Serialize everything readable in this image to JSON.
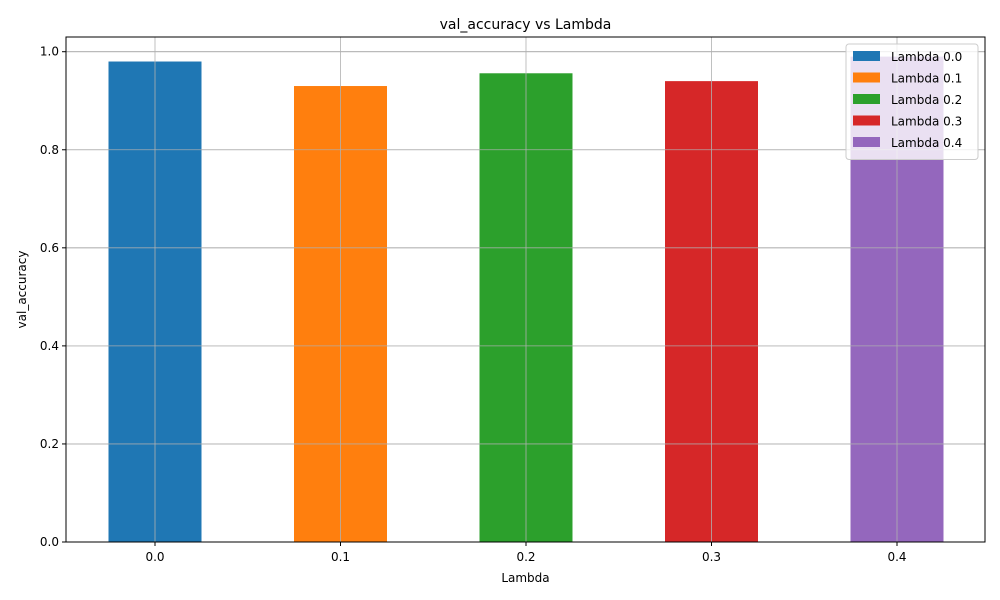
{
  "chart_data": {
    "type": "bar",
    "title": "val_accuracy vs Lambda",
    "xlabel": "Lambda",
    "ylabel": "val_accuracy",
    "categories": [
      "0.0",
      "0.1",
      "0.2",
      "0.3",
      "0.4"
    ],
    "ylim": [
      0,
      1.03
    ],
    "yticks": [
      "0.0",
      "0.2",
      "0.4",
      "0.6",
      "0.8",
      "1.0"
    ],
    "ytick_values": [
      0,
      0.2,
      0.4,
      0.6,
      0.8,
      1.0
    ],
    "grid": true,
    "legend_position": "top-right",
    "series": [
      {
        "name": "Lambda 0.0",
        "value": 0.98,
        "color": "#1f77b4"
      },
      {
        "name": "Lambda 0.1",
        "value": 0.93,
        "color": "#ff7f0e"
      },
      {
        "name": "Lambda 0.2",
        "value": 0.956,
        "color": "#2ca02c"
      },
      {
        "name": "Lambda 0.3",
        "value": 0.94,
        "color": "#d62728"
      },
      {
        "name": "Lambda 0.4",
        "value": 0.99,
        "color": "#9467bd"
      }
    ]
  }
}
